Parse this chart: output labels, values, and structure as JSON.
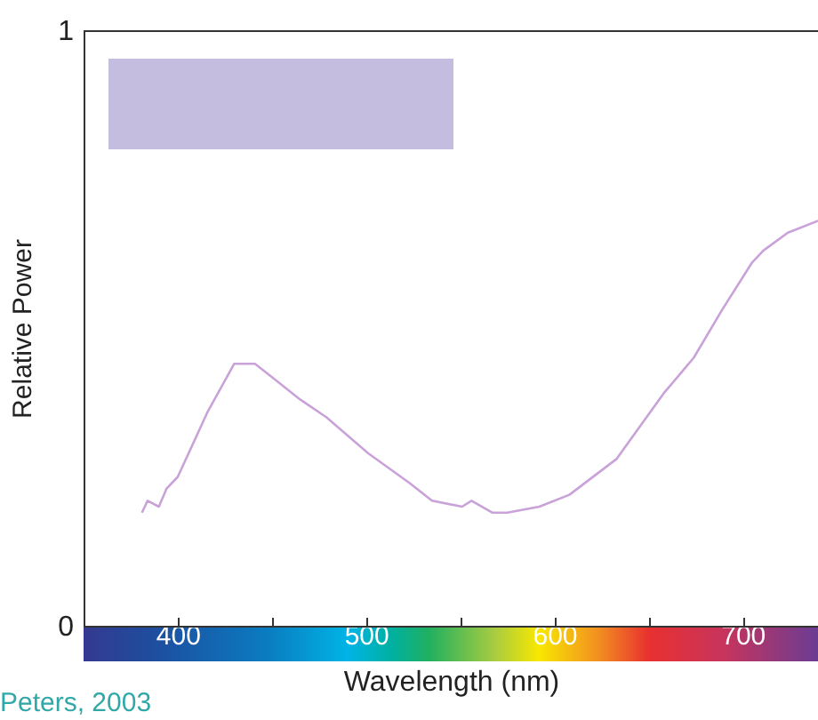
{
  "chart_data": {
    "type": "line",
    "xlabel": "Wavelength (nm)",
    "ylabel": "Relative Power",
    "annotations": [
      "Peters, 2003"
    ],
    "x": [
      381,
      384,
      390,
      394,
      400,
      416,
      430,
      441,
      453,
      465,
      479,
      501,
      523,
      535,
      551,
      556,
      567,
      575,
      592,
      608,
      633,
      658,
      674,
      689,
      705,
      711,
      724,
      740
    ],
    "series": [
      {
        "color": "#c8a2d8",
        "values": [
          0.19,
          0.21,
          0.2,
          0.23,
          0.25,
          0.36,
          0.44,
          0.44,
          0.41,
          0.38,
          0.35,
          0.29,
          0.24,
          0.21,
          0.2,
          0.21,
          0.19,
          0.19,
          0.2,
          0.22,
          0.28,
          0.39,
          0.45,
          0.53,
          0.61,
          0.63,
          0.66,
          0.68
        ]
      }
    ],
    "xlim": [
      350,
      740
    ],
    "xticks": [
      400,
      {
        "value": 450,
        "label": null
      },
      500,
      {
        "value": 550,
        "label": null
      },
      600,
      {
        "value": 650,
        "label": null
      },
      700
    ],
    "ylim": [
      0,
      1
    ],
    "yticks": [
      0,
      1
    ],
    "grid": false,
    "marker": "none",
    "line_style": "solid"
  }
}
